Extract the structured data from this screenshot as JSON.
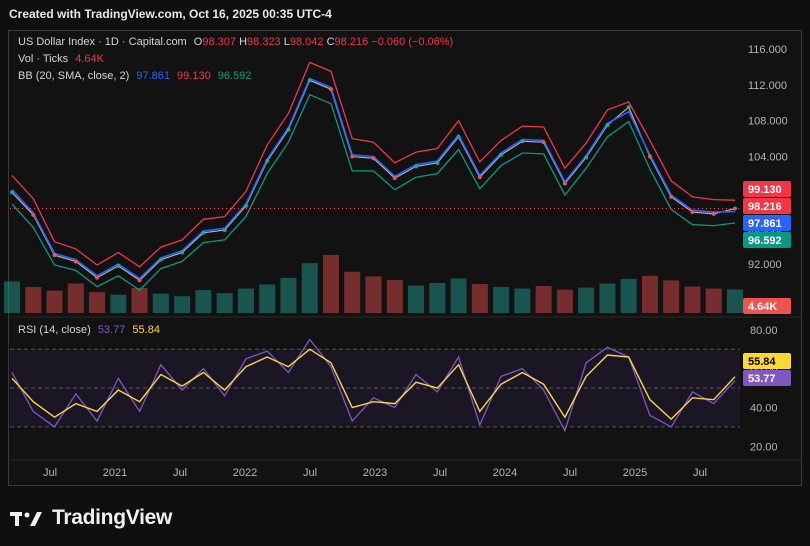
{
  "header": {
    "created": "Created with TradingView.com, Oct 16, 2025 00:35 UTC-4"
  },
  "legend": {
    "symbol": "US Dollar Index · 1D · Capital.com",
    "o_label": "O",
    "o_val": "98.307",
    "h_label": "H",
    "h_val": "98.323",
    "l_label": "L",
    "l_val": "98.042",
    "c_label": "C",
    "c_val": "98.216",
    "change": "−0.060 (−0.06%)",
    "vol_label": "Vol · Ticks",
    "vol_val": "4.64K",
    "bb_label": "BB (20, SMA, close, 2)",
    "bb_basis": "97.861",
    "bb_upper": "99.130",
    "bb_lower": "96.592",
    "rsi_label": "RSI (14, close)",
    "rsi_val": "53.77",
    "rsi_ma": "55.84"
  },
  "footer": {
    "brand": "TradingView"
  },
  "colors": {
    "up": "#26a69a",
    "down": "#ef5350",
    "upper": "#f23645",
    "basis": "#2962ff",
    "lower": "#089981",
    "rsi": "#7e57c2",
    "rsi_ma": "#fdd835",
    "grid": "#1e1e1e",
    "axis_text": "#b2b5be"
  },
  "chart_data": [
    {
      "type": "line",
      "title": "US Dollar Index · 1D · Capital.com",
      "x_ticks": [
        "Jul",
        "2021",
        "Jul",
        "2022",
        "Jul",
        "2023",
        "Jul",
        "2024",
        "Jul",
        "2025",
        "Jul"
      ],
      "y_ticks": [
        92.0,
        96.0,
        100.0,
        104.0,
        108.0,
        112.0,
        116.0
      ],
      "ylim": [
        88.0,
        117.0
      ],
      "x": [
        "2020-05",
        "2020-07",
        "2020-09",
        "2020-11",
        "2021-01",
        "2021-03",
        "2021-05",
        "2021-07",
        "2021-09",
        "2021-11",
        "2022-01",
        "2022-03",
        "2022-05",
        "2022-07",
        "2022-09",
        "2022-10",
        "2022-12",
        "2023-02",
        "2023-04",
        "2023-06",
        "2023-08",
        "2023-10",
        "2023-12",
        "2024-02",
        "2024-04",
        "2024-06",
        "2024-08",
        "2024-10",
        "2024-12",
        "2025-01",
        "2025-03",
        "2025-05",
        "2025-07",
        "2025-09",
        "2025-10"
      ],
      "series": [
        {
          "name": "Close",
          "values": [
            100.0,
            97.5,
            93.0,
            92.3,
            90.5,
            91.8,
            90.2,
            92.5,
            93.3,
            95.5,
            95.8,
            98.5,
            103.5,
            107.0,
            112.5,
            111.5,
            104.0,
            103.8,
            101.6,
            102.9,
            103.3,
            106.2,
            101.7,
            104.2,
            105.7,
            105.6,
            101.0,
            103.9,
            107.5,
            109.5,
            104.0,
            99.5,
            97.8,
            97.6,
            98.2
          ]
        },
        {
          "name": "Upper",
          "values": [
            101.9,
            99.3,
            94.5,
            93.7,
            91.9,
            93.3,
            91.7,
            93.9,
            94.7,
            97.0,
            97.3,
            100.1,
            105.3,
            108.8,
            114.5,
            113.5,
            106.0,
            105.6,
            103.3,
            104.5,
            104.9,
            108.0,
            103.4,
            105.8,
            107.4,
            107.3,
            102.7,
            105.5,
            109.2,
            110.1,
            105.8,
            101.3,
            99.5,
            99.2,
            99.13
          ]
        },
        {
          "name": "Basis",
          "values": [
            100.3,
            97.7,
            93.2,
            92.5,
            90.7,
            92.0,
            90.4,
            92.7,
            93.5,
            95.7,
            96.0,
            98.7,
            103.7,
            107.2,
            112.7,
            111.7,
            104.2,
            104.0,
            101.8,
            103.1,
            103.5,
            106.4,
            101.9,
            104.4,
            105.9,
            105.8,
            101.2,
            104.1,
            107.7,
            109.0,
            104.2,
            99.7,
            98.0,
            97.8,
            97.861
          ]
        },
        {
          "name": "Lower",
          "values": [
            98.7,
            96.1,
            91.9,
            91.3,
            89.5,
            90.7,
            89.1,
            91.5,
            92.3,
            94.4,
            94.7,
            97.3,
            102.1,
            105.6,
            110.9,
            109.9,
            102.4,
            102.4,
            100.3,
            101.7,
            102.1,
            104.8,
            100.4,
            103.0,
            104.4,
            104.3,
            99.7,
            102.7,
            106.2,
            107.9,
            102.6,
            98.1,
            96.4,
            96.3,
            96.592
          ]
        }
      ]
    },
    {
      "type": "bar",
      "title": "Vol · Ticks",
      "last_value": 4.64,
      "unit": "K",
      "values": [
        6.2,
        5.1,
        4.4,
        5.8,
        4.1,
        3.6,
        4.9,
        3.8,
        3.3,
        4.5,
        3.9,
        4.8,
        5.6,
        6.9,
        9.8,
        11.4,
        8.1,
        7.2,
        6.5,
        5.4,
        5.9,
        6.8,
        5.7,
        5.1,
        4.8,
        5.3,
        4.6,
        5.0,
        5.8,
        6.7,
        7.3,
        6.4,
        5.2,
        4.8,
        4.64
      ]
    },
    {
      "type": "line",
      "title": "RSI (14, close)",
      "y_ticks": [
        20.0,
        40.0,
        60.0,
        80.0
      ],
      "ylim": [
        14.0,
        84.0
      ],
      "bands": [
        30,
        50,
        70
      ],
      "series": [
        {
          "name": "RSI",
          "values": [
            58,
            38,
            30,
            47,
            33,
            55,
            38,
            62,
            49,
            60,
            46,
            65,
            69,
            58,
            75,
            61,
            33,
            45,
            40,
            57,
            48,
            66,
            31,
            56,
            60,
            49,
            28,
            63,
            71,
            66,
            36,
            30,
            48,
            42,
            53.77
          ]
        },
        {
          "name": "RSI MA",
          "values": [
            55,
            43,
            35,
            42,
            38,
            49,
            43,
            57,
            51,
            58,
            49,
            61,
            66,
            61,
            70,
            63,
            40,
            43,
            42,
            53,
            50,
            62,
            38,
            52,
            58,
            52,
            35,
            56,
            67,
            66,
            44,
            34,
            45,
            44,
            55.84
          ]
        }
      ]
    }
  ]
}
